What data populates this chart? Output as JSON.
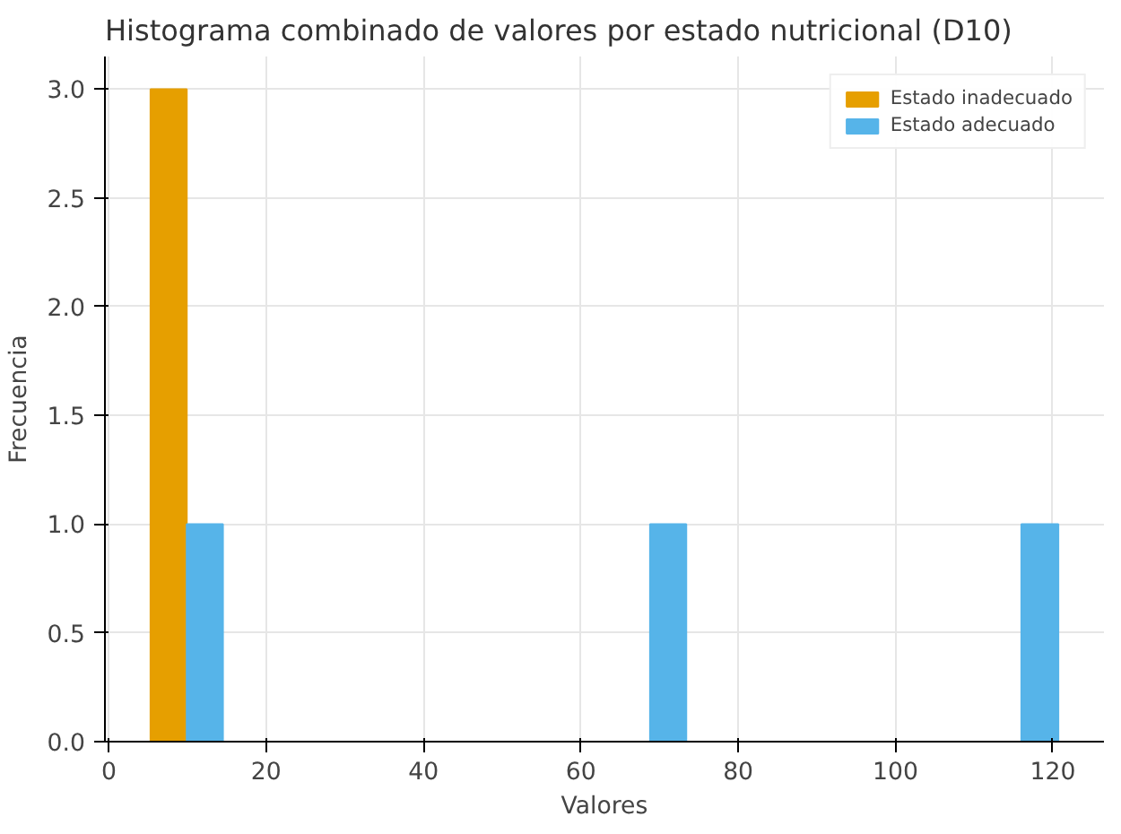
{
  "chart_data": {
    "type": "histogram",
    "title": "Histograma combinado de valores por estado nutricional (D10)",
    "xlabel": "Valores",
    "ylabel": "Frecuencia",
    "series": [
      {
        "name": "Estado inadecuado",
        "color": "#e69f00",
        "values": [
          3,
          0,
          0,
          0,
          0,
          0
        ]
      },
      {
        "name": "Estado adecuado",
        "color": "#56b4e9",
        "values": [
          0,
          1,
          0,
          1,
          0,
          1
        ]
      }
    ],
    "bins": [
      5.3,
      9.9,
      14.5,
      68.8,
      73.4,
      116.0,
      120.7
    ],
    "xlim": [
      -0.5,
      126.5
    ],
    "ylim": [
      0,
      3.15
    ],
    "xticks": [
      0,
      20,
      40,
      60,
      80,
      100,
      120
    ],
    "yticks": [
      {
        "value": 0,
        "label": "0.0"
      },
      {
        "value": 0.5,
        "label": "0.5"
      },
      {
        "value": 1,
        "label": "1.0"
      },
      {
        "value": 1.5,
        "label": "1.5"
      },
      {
        "value": 2,
        "label": "2.0"
      },
      {
        "value": 2.5,
        "label": "2.5"
      },
      {
        "value": 3,
        "label": "3.0"
      }
    ],
    "grid": true,
    "legend": "top right"
  }
}
